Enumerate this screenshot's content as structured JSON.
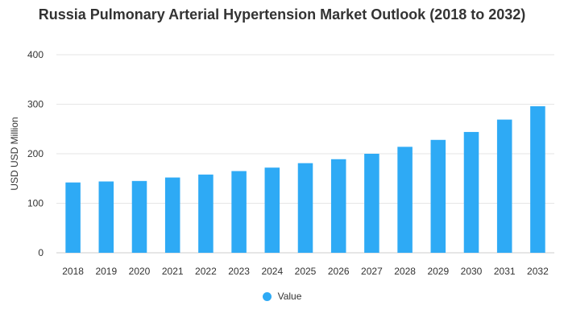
{
  "chart_data": {
    "type": "bar",
    "title": "Russia Pulmonary Arterial Hypertension Market Outlook (2018 to 2032)",
    "xlabel": "",
    "ylabel": "USD USD Million",
    "categories": [
      "2018",
      "2019",
      "2020",
      "2021",
      "2022",
      "2023",
      "2024",
      "2025",
      "2026",
      "2027",
      "2028",
      "2029",
      "2030",
      "2031",
      "2032"
    ],
    "series": [
      {
        "name": "Value",
        "values": [
          142,
          144,
          145,
          152,
          158,
          165,
          172,
          181,
          189,
          200,
          214,
          228,
          244,
          269,
          296
        ]
      }
    ],
    "ylim": [
      0,
      400
    ],
    "yticks": [
      0,
      100,
      200,
      300,
      400
    ],
    "grid": true,
    "legend_position": "bottom-center",
    "bar_color": "#2eaaf5"
  }
}
